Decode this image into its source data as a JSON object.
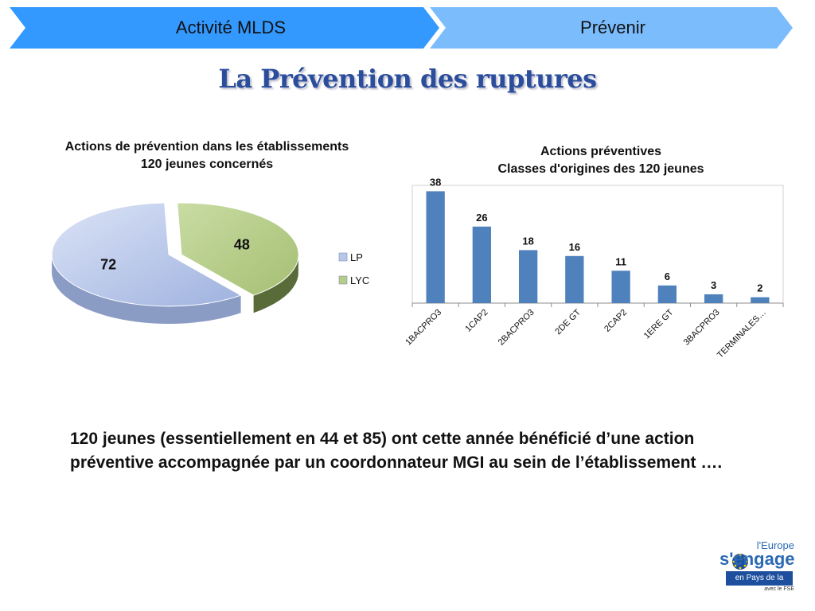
{
  "header": {
    "tab1_label": "Activité MLDS",
    "tab2_label": "Prévenir",
    "colors": {
      "tab1": "#3399ff",
      "tab2": "#77b9fb"
    }
  },
  "page_title": "La Prévention des ruptures",
  "body_text": "120 jeunes (essentiellement en 44 et 85) ont cette année bénéficié d’une action préventive accompagnée par un coordonnateur MGI au sein de l’établissement ….",
  "logo": {
    "line1": "l'Europe",
    "line2": "s'engage",
    "line3": "en Pays de la Loire",
    "line4": "avec le FSE"
  },
  "chart_data": [
    {
      "type": "pie",
      "title": "Actions de prévention dans les établissements",
      "subtitle": "120 jeunes concernés",
      "categories": [
        "LP",
        "LYC"
      ],
      "values": [
        72,
        48
      ],
      "legend": "right",
      "colors": [
        "#b7c7ea",
        "#b5cd86"
      ]
    },
    {
      "type": "bar",
      "title": "Actions préventives",
      "subtitle": "Classes d'origines des 120 jeunes",
      "categories": [
        "1BACPRO3",
        "1CAP2",
        "2BACPRO3",
        "2DE GT",
        "2CAP2",
        "1ERE GT",
        "3BACPRO3",
        "TERMINALES…"
      ],
      "values": [
        38,
        26,
        18,
        16,
        11,
        6,
        3,
        2
      ],
      "ylim": [
        0,
        40
      ],
      "grid": false,
      "color": "#4f81bd"
    }
  ]
}
